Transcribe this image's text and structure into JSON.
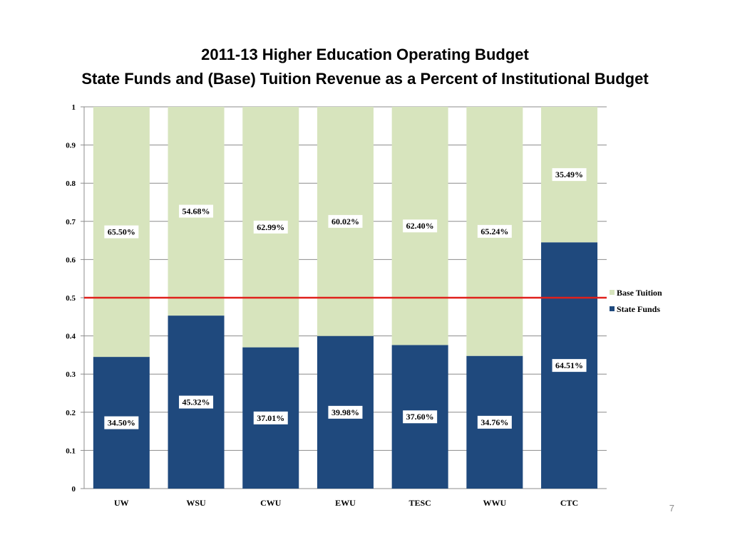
{
  "page_number": "7",
  "chart_data": {
    "type": "bar",
    "stacked": true,
    "title": "2011-13 Higher Education Operating Budget",
    "subtitle": "State Funds and (Base) Tuition Revenue as a Percent of Institutional Budget",
    "categories": [
      "UW",
      "WSU",
      "CWU",
      "EWU",
      "TESC",
      "WWU",
      "CTC"
    ],
    "series": [
      {
        "name": "State Funds",
        "color": "#1f497d",
        "values": [
          0.345,
          0.4532,
          0.3701,
          0.3998,
          0.376,
          0.3476,
          0.6451
        ],
        "labels": [
          "34.50%",
          "45.32%",
          "37.01%",
          "39.98%",
          "37.60%",
          "34.76%",
          "64.51%"
        ]
      },
      {
        "name": "Base Tuition",
        "color": "#d7e4bd",
        "values": [
          0.655,
          0.5468,
          0.6299,
          0.6002,
          0.624,
          0.6524,
          0.3549
        ],
        "labels": [
          "65.50%",
          "54.68%",
          "62.99%",
          "60.02%",
          "62.40%",
          "65.24%",
          "35.49%"
        ]
      }
    ],
    "ylim": [
      0,
      1
    ],
    "yticks": [
      "0",
      "0.1",
      "0.2",
      "0.3",
      "0.4",
      "0.5",
      "0.6",
      "0.7",
      "0.8",
      "0.9",
      "1"
    ],
    "reference_line": {
      "value": 0.5,
      "color": "#e0201b"
    },
    "grid": true,
    "legend_position": "right",
    "legend_order": [
      "Base Tuition",
      "State Funds"
    ]
  }
}
